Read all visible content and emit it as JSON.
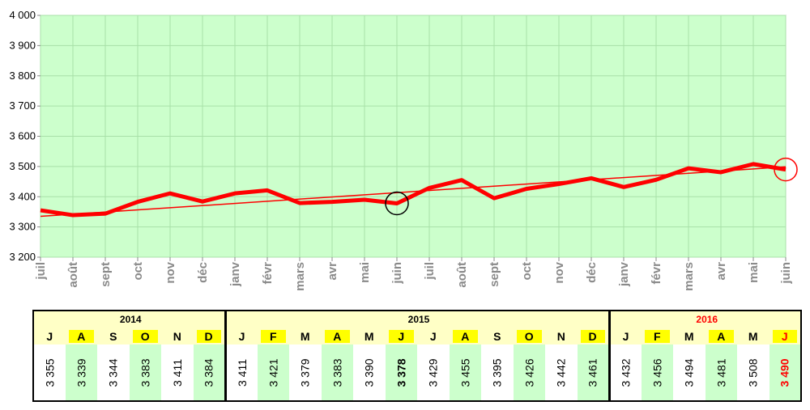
{
  "chart_data": {
    "type": "line",
    "y_ticks": [
      "4 000",
      "3 900",
      "3 800",
      "3 700",
      "3 600",
      "3 500",
      "3 400",
      "3 300",
      "3 200"
    ],
    "ylim": [
      3200,
      4000
    ],
    "x_labels": [
      "juil",
      "août",
      "sept",
      "oct",
      "nov",
      "déc",
      "janv",
      "févr",
      "mars",
      "avr",
      "mai",
      "juin",
      "juil",
      "août",
      "sept",
      "oct",
      "nov",
      "déc",
      "janv",
      "févr",
      "mars",
      "avr",
      "mai",
      "juin"
    ],
    "series": [
      {
        "values": [
          3355,
          3339,
          3344,
          3383,
          3411,
          3384,
          3411,
          3421,
          3379,
          3383,
          3390,
          3378,
          3429,
          3455,
          3395,
          3426,
          3442,
          3461,
          3432,
          3456,
          3494,
          3481,
          3508,
          3490
        ],
        "color": "#ff0000"
      }
    ],
    "trend": {
      "start": 3335,
      "end": 3499,
      "color": "#ff0000"
    },
    "highlights": [
      {
        "index": 11,
        "color": "#000000"
      },
      {
        "index": 23,
        "color": "#ff0000"
      }
    ],
    "plot_background": "#ccffcc",
    "grid": true
  },
  "table": {
    "years": [
      {
        "label": "2014",
        "color": "#000000",
        "months": [
          "J",
          "A",
          "S",
          "O",
          "N",
          "D"
        ],
        "values": [
          "3 355",
          "3 339",
          "3 344",
          "3 383",
          "3 411",
          "3 384"
        ]
      },
      {
        "label": "2015",
        "color": "#000000",
        "months": [
          "J",
          "F",
          "M",
          "A",
          "M",
          "J",
          "J",
          "A",
          "S",
          "O",
          "N",
          "D"
        ],
        "values": [
          "3 411",
          "3 421",
          "3 379",
          "3 383",
          "3 390",
          "3 378",
          "3 429",
          "3 455",
          "3 395",
          "3 426",
          "3 442",
          "3 461"
        ]
      },
      {
        "label": "2016",
        "color": "#ff0000",
        "months": [
          "J",
          "F",
          "M",
          "A",
          "M",
          "J"
        ],
        "values": [
          "3 432",
          "3 456",
          "3 494",
          "3 481",
          "3 508",
          "3 490"
        ]
      }
    ],
    "highlight_pattern": [
      false,
      true,
      false,
      true,
      false,
      true
    ],
    "bold_cells": [
      "2015-5",
      "2016-5"
    ],
    "red_cells": [
      "2016-5"
    ]
  }
}
